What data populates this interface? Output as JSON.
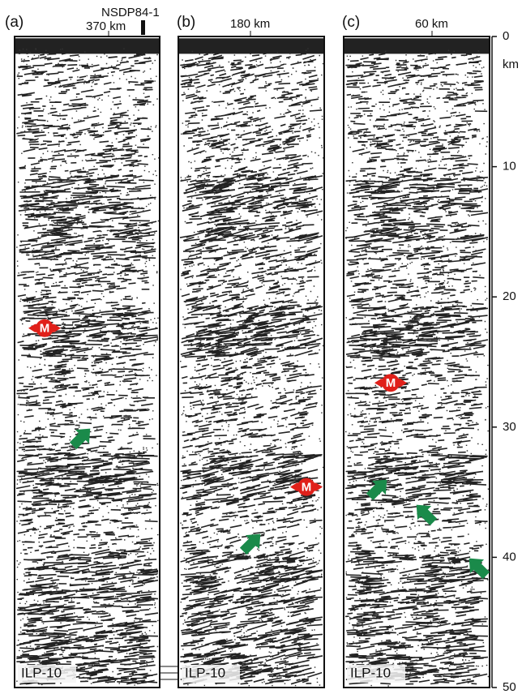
{
  "figure": {
    "panels": [
      {
        "label": "(a)",
        "distance": "370 km",
        "well": "NSDP84-1",
        "line": "ILP-10",
        "moho_depth": 22.4
      },
      {
        "label": "(b)",
        "distance": "180 km",
        "line": "ILP-10",
        "moho_depth": 34.6
      },
      {
        "label": "(c)",
        "distance": "60 km",
        "line": "ILP-10",
        "moho_depth": 26.6
      }
    ],
    "moho_label": "M",
    "depth_axis": {
      "unit": "km",
      "range": [
        0,
        50
      ],
      "ticks": [
        0,
        10,
        20,
        30,
        40,
        50
      ]
    }
  }
}
